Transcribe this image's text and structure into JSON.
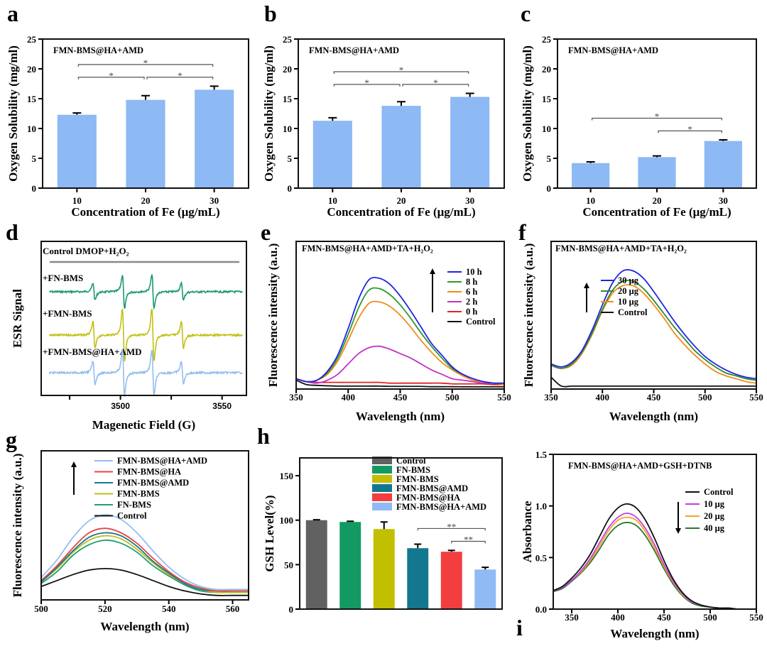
{
  "chart_data": [
    {
      "panel": "a",
      "type": "bar",
      "title": "FMN-BMS@HA+AMD",
      "xlabel": "Concentration of Fe (μg/mL)",
      "ylabel": "Oxygen Solubility  (mg/ml)",
      "categories": [
        "10",
        "20",
        "30"
      ],
      "values": [
        12.3,
        14.8,
        16.5
      ],
      "errors": [
        0.3,
        0.7,
        0.6
      ],
      "colors": [
        "#8db9f4",
        "#8db9f4",
        "#8db9f4"
      ],
      "ylim": [
        0,
        25
      ],
      "yticks": [
        0,
        5,
        10,
        15,
        20,
        25
      ],
      "ytick_labels": [
        "0",
        "5",
        "10",
        "15",
        "20",
        "25"
      ],
      "significance": [
        {
          "from": 0,
          "to": 1,
          "label": "*"
        },
        {
          "from": 1,
          "to": 2,
          "label": "*"
        },
        {
          "from": 0,
          "to": 2,
          "label": "*"
        }
      ]
    },
    {
      "panel": "b",
      "type": "bar",
      "title": "FMN-BMS@HA+AMD",
      "xlabel": "Concentration of Fe (μg/mL)",
      "ylabel": "Oxygen Solubility  (mg/ml)",
      "categories": [
        "10",
        "20",
        "30"
      ],
      "values": [
        11.3,
        13.8,
        15.3
      ],
      "errors": [
        0.5,
        0.7,
        0.6
      ],
      "colors": [
        "#8db9f4",
        "#8db9f4",
        "#8db9f4"
      ],
      "ylim": [
        0,
        25
      ],
      "yticks": [
        0,
        5,
        10,
        15,
        20,
        25
      ],
      "ytick_labels": [
        "0",
        "5",
        "10",
        "15",
        "20",
        "25"
      ],
      "significance": [
        {
          "from": 0,
          "to": 1,
          "label": "*"
        },
        {
          "from": 1,
          "to": 2,
          "label": "*"
        },
        {
          "from": 0,
          "to": 2,
          "label": "*"
        }
      ]
    },
    {
      "panel": "c",
      "type": "bar",
      "title": "FMN-BMS@HA+AMD",
      "xlabel": "Concentration of Fe (μg/mL)",
      "ylabel": "Oxygen Solubility  (mg/ml)",
      "categories": [
        "10",
        "20",
        "30"
      ],
      "values": [
        4.2,
        5.2,
        7.9
      ],
      "errors": [
        0.2,
        0.2,
        0.2
      ],
      "colors": [
        "#8db9f4",
        "#8db9f4",
        "#8db9f4"
      ],
      "ylim": [
        0,
        25
      ],
      "yticks": [
        0,
        5,
        10,
        15,
        20,
        25
      ],
      "ytick_labels": [
        "0",
        "5",
        "10",
        "15",
        "20",
        "25"
      ],
      "significance": [
        {
          "from": 1,
          "to": 2,
          "label": "*"
        },
        {
          "from": 0,
          "to": 2,
          "label": "*"
        }
      ]
    },
    {
      "panel": "d",
      "type": "esr",
      "xlabel": "Magenetic Field (G)",
      "ylabel": "ESR Signal",
      "xlim": [
        3461,
        3562
      ],
      "xticks": [
        3500,
        3550
      ],
      "xtick_labels": [
        "3500",
        "3550"
      ],
      "xticks_minor": [
        3475,
        3525
      ],
      "hyperfine_lines_G": [
        3487,
        3501.5,
        3516,
        3530.5
      ],
      "line_intensity_ratio": [
        1,
        2,
        2,
        1
      ],
      "series": [
        {
          "name": "Control DMOP+H₂O₂",
          "amplitude": 0,
          "color": "#8a8a8a"
        },
        {
          "name": "+FN-BMS",
          "amplitude": 1.0,
          "color": "#1b9a6c"
        },
        {
          "name": "+FMN-BMS",
          "amplitude": 1.55,
          "color": "#c2c012"
        },
        {
          "name": "+FMN-BMS@HA+AMD",
          "amplitude": 1.35,
          "color": "#93bdf0"
        }
      ]
    },
    {
      "panel": "e",
      "type": "line",
      "title": "FMN-BMS@HA+AMD+TA+H₂O₂",
      "xlabel": "Wavelength (nm)",
      "ylabel": "Fluorescence intensity (a.u.)",
      "xlim": [
        350,
        550
      ],
      "xticks": [
        350,
        400,
        450,
        500,
        550
      ],
      "xtick_labels": [
        "350",
        "400",
        "450",
        "500",
        "550"
      ],
      "ylim": [
        0,
        1
      ],
      "yunits": "a.u.",
      "legend": "top-right",
      "arrow": "up",
      "x": [
        350,
        360,
        370,
        380,
        390,
        400,
        410,
        420,
        430,
        440,
        450,
        460,
        470,
        480,
        490,
        500,
        510,
        520,
        530,
        540,
        550
      ],
      "series": [
        {
          "name": "10 h",
          "color": "#2323e6",
          "y": [
            0.07,
            0.05,
            0.06,
            0.12,
            0.23,
            0.41,
            0.61,
            0.74,
            0.75,
            0.71,
            0.63,
            0.53,
            0.42,
            0.31,
            0.23,
            0.15,
            0.1,
            0.07,
            0.05,
            0.04,
            0.04
          ]
        },
        {
          "name": "8 h",
          "color": "#2e9a2e",
          "y": [
            0.07,
            0.05,
            0.06,
            0.11,
            0.21,
            0.37,
            0.55,
            0.67,
            0.68,
            0.64,
            0.57,
            0.48,
            0.38,
            0.29,
            0.21,
            0.14,
            0.1,
            0.07,
            0.05,
            0.04,
            0.04
          ]
        },
        {
          "name": "6 h",
          "color": "#f08c1c",
          "y": [
            0.07,
            0.05,
            0.06,
            0.1,
            0.19,
            0.33,
            0.48,
            0.58,
            0.59,
            0.56,
            0.5,
            0.42,
            0.33,
            0.25,
            0.18,
            0.13,
            0.09,
            0.06,
            0.05,
            0.04,
            0.03
          ]
        },
        {
          "name": "2 h",
          "color": "#c232c2",
          "y": [
            0.07,
            0.05,
            0.04,
            0.06,
            0.1,
            0.17,
            0.24,
            0.28,
            0.29,
            0.27,
            0.24,
            0.21,
            0.17,
            0.13,
            0.1,
            0.07,
            0.06,
            0.05,
            0.04,
            0.04,
            0.03
          ]
        },
        {
          "name": "0 h",
          "color": "#e42222",
          "y": [
            0.07,
            0.05,
            0.045,
            0.045,
            0.045,
            0.045,
            0.045,
            0.045,
            0.045,
            0.04,
            0.04,
            0.04,
            0.04,
            0.04,
            0.04,
            0.035,
            0.035,
            0.035,
            0.035,
            0.03,
            0.03
          ]
        },
        {
          "name": "Control",
          "color": "#111111",
          "y": [
            0.06,
            0.03,
            0.025,
            0.022,
            0.02,
            0.02,
            0.02,
            0.02,
            0.02,
            0.018,
            0.018,
            0.018,
            0.018,
            0.016,
            0.016,
            0.016,
            0.015,
            0.015,
            0.015,
            0.015,
            0.015
          ]
        }
      ]
    },
    {
      "panel": "f",
      "type": "line",
      "title": "FMN-BMS@HA+AMD+TA+H₂O₂",
      "xlabel": "Wavelength (nm)",
      "ylabel": "Fluorescence intensity (a.u.)",
      "xlim": [
        350,
        550
      ],
      "xticks": [
        350,
        400,
        450,
        500,
        550
      ],
      "xtick_labels": [
        "350",
        "400",
        "450",
        "500",
        "550"
      ],
      "ylim": [
        0,
        1
      ],
      "yunits": "a.u.",
      "legend": "top-right",
      "arrow": "up",
      "x": [
        350,
        360,
        370,
        380,
        390,
        400,
        410,
        420,
        430,
        440,
        450,
        460,
        470,
        480,
        490,
        500,
        510,
        520,
        530,
        540,
        550
      ],
      "series": [
        {
          "name": "30 μg",
          "color": "#2323e6",
          "y": [
            0.17,
            0.15,
            0.18,
            0.26,
            0.4,
            0.57,
            0.72,
            0.8,
            0.8,
            0.75,
            0.66,
            0.56,
            0.46,
            0.37,
            0.29,
            0.22,
            0.17,
            0.13,
            0.1,
            0.08,
            0.07
          ]
        },
        {
          "name": "20 μg",
          "color": "#2e8a2e",
          "y": [
            0.16,
            0.14,
            0.17,
            0.25,
            0.38,
            0.54,
            0.67,
            0.73,
            0.73,
            0.68,
            0.6,
            0.51,
            0.42,
            0.34,
            0.26,
            0.2,
            0.15,
            0.11,
            0.09,
            0.07,
            0.06
          ]
        },
        {
          "name": "10 μg",
          "color": "#f08c1c",
          "y": [
            0.16,
            0.14,
            0.16,
            0.24,
            0.37,
            0.53,
            0.65,
            0.7,
            0.7,
            0.65,
            0.57,
            0.48,
            0.38,
            0.3,
            0.23,
            0.17,
            0.12,
            0.09,
            0.07,
            0.05,
            0.04
          ]
        },
        {
          "name": "Control",
          "color": "#111111",
          "y": [
            0.08,
            0.02,
            0.02,
            0.02,
            0.02,
            0.02,
            0.02,
            0.02,
            0.02,
            0.02,
            0.02,
            0.02,
            0.02,
            0.02,
            0.02,
            0.02,
            0.02,
            0.02,
            0.02,
            0.02,
            0.02
          ]
        }
      ]
    },
    {
      "panel": "g",
      "type": "line",
      "xlabel": "Wavelength (nm)",
      "ylabel": "Fluorescence intensity (a.u.)",
      "xlim": [
        500,
        565
      ],
      "xticks": [
        500,
        520,
        540,
        560
      ],
      "xtick_labels": [
        "500",
        "520",
        "540",
        "560"
      ],
      "ylim": [
        0,
        1
      ],
      "yunits": "a.u.",
      "legend": "top-left",
      "arrow": "up",
      "x": [
        500,
        505,
        510,
        515,
        520,
        525,
        530,
        535,
        540,
        545,
        550,
        555,
        560,
        565
      ],
      "series": [
        {
          "name": "FMN-BMS@HA+AMD",
          "color": "#92bdf2",
          "y": [
            0.15,
            0.27,
            0.42,
            0.53,
            0.57,
            0.54,
            0.45,
            0.33,
            0.22,
            0.14,
            0.09,
            0.07,
            0.07,
            0.07
          ]
        },
        {
          "name": "FMN-BMS@HA",
          "color": "#e84444",
          "y": [
            0.13,
            0.23,
            0.35,
            0.45,
            0.48,
            0.45,
            0.38,
            0.28,
            0.19,
            0.12,
            0.08,
            0.06,
            0.06,
            0.06
          ]
        },
        {
          "name": "FMN-BMS@AMD",
          "color": "#17788f",
          "y": [
            0.12,
            0.22,
            0.33,
            0.42,
            0.45,
            0.43,
            0.36,
            0.26,
            0.18,
            0.11,
            0.07,
            0.06,
            0.06,
            0.06
          ]
        },
        {
          "name": "FMN-BMS",
          "color": "#bcbc1e",
          "y": [
            0.12,
            0.21,
            0.32,
            0.4,
            0.43,
            0.41,
            0.34,
            0.25,
            0.17,
            0.11,
            0.07,
            0.05,
            0.05,
            0.05
          ]
        },
        {
          "name": "FN-BMS",
          "color": "#1f9f6f",
          "y": [
            0.11,
            0.19,
            0.3,
            0.37,
            0.4,
            0.38,
            0.32,
            0.23,
            0.16,
            0.1,
            0.06,
            0.05,
            0.05,
            0.05
          ]
        },
        {
          "name": "Control",
          "color": "#111111",
          "y": [
            0.09,
            0.13,
            0.17,
            0.2,
            0.21,
            0.2,
            0.17,
            0.13,
            0.09,
            0.06,
            0.04,
            0.03,
            0.03,
            0.03
          ]
        }
      ]
    },
    {
      "panel": "h",
      "type": "bar",
      "ylabel": "GSH Level(%)",
      "categories": [
        "Control",
        "FN-BMS",
        "FMN-BMS",
        "FMN-BMS@AMD",
        "FMN-BMS@HA",
        "FMN-BMS@HA+AMD"
      ],
      "values": [
        100,
        98,
        90,
        68.5,
        64.5,
        44.5
      ],
      "errors": [
        0.5,
        0.8,
        8,
        4.5,
        1.5,
        2.5
      ],
      "colors": [
        "#616161",
        "#139a63",
        "#c2bf00",
        "#13778f",
        "#f23e3e",
        "#8fbaf3"
      ],
      "ylim": [
        0,
        170
      ],
      "yticks": [
        0,
        50,
        100,
        150
      ],
      "ytick_labels": [
        "0",
        "50",
        "100",
        "150"
      ],
      "legend": "top-center",
      "significance": [
        {
          "from": 4,
          "to": 5,
          "label": "**"
        },
        {
          "from": 3,
          "to": 5,
          "label": "**"
        }
      ]
    },
    {
      "panel": "i",
      "type": "line",
      "title": "FMN-BMS@HA+AMD+GSH+DTNB",
      "xlabel": "Wavelength (nm)",
      "ylabel": "Absorbance",
      "xlim": [
        330,
        550
      ],
      "xticks": [
        350,
        400,
        450,
        500,
        550
      ],
      "xtick_labels": [
        "350",
        "400",
        "450",
        "500",
        "550"
      ],
      "ylim": [
        0,
        1.5
      ],
      "yticks": [
        0,
        0.5,
        1.0,
        1.5
      ],
      "ytick_labels": [
        "0.0",
        "0.5",
        "1.0",
        "1.5"
      ],
      "legend": "top-right",
      "arrow": "down",
      "x": [
        330,
        340,
        350,
        360,
        370,
        380,
        390,
        400,
        410,
        420,
        430,
        440,
        450,
        460,
        470,
        480,
        490,
        500,
        510,
        520,
        530,
        540,
        550
      ],
      "series": [
        {
          "name": "Control",
          "color": "#111111",
          "y": [
            0.18,
            0.22,
            0.3,
            0.4,
            0.53,
            0.7,
            0.87,
            0.98,
            1.02,
            0.98,
            0.86,
            0.68,
            0.47,
            0.29,
            0.16,
            0.08,
            0.04,
            0.02,
            0.01,
            0.01,
            0,
            0,
            0
          ]
        },
        {
          "name": "10 μg",
          "color": "#c23fe2",
          "y": [
            0.18,
            0.21,
            0.28,
            0.37,
            0.49,
            0.64,
            0.79,
            0.89,
            0.93,
            0.89,
            0.78,
            0.62,
            0.43,
            0.27,
            0.15,
            0.07,
            0.04,
            0.02,
            0.01,
            0.01,
            0,
            0,
            0
          ]
        },
        {
          "name": "20 μg",
          "color": "#f2a232",
          "y": [
            0.18,
            0.21,
            0.28,
            0.36,
            0.47,
            0.61,
            0.76,
            0.86,
            0.89,
            0.86,
            0.75,
            0.59,
            0.41,
            0.26,
            0.14,
            0.07,
            0.04,
            0.02,
            0.01,
            0.01,
            0,
            0,
            0
          ]
        },
        {
          "name": "40 μg",
          "color": "#2a7a2a",
          "y": [
            0.17,
            0.2,
            0.27,
            0.35,
            0.45,
            0.58,
            0.72,
            0.81,
            0.84,
            0.81,
            0.71,
            0.56,
            0.39,
            0.24,
            0.13,
            0.06,
            0.03,
            0.02,
            0.01,
            0,
            0,
            0,
            0
          ]
        }
      ]
    }
  ]
}
